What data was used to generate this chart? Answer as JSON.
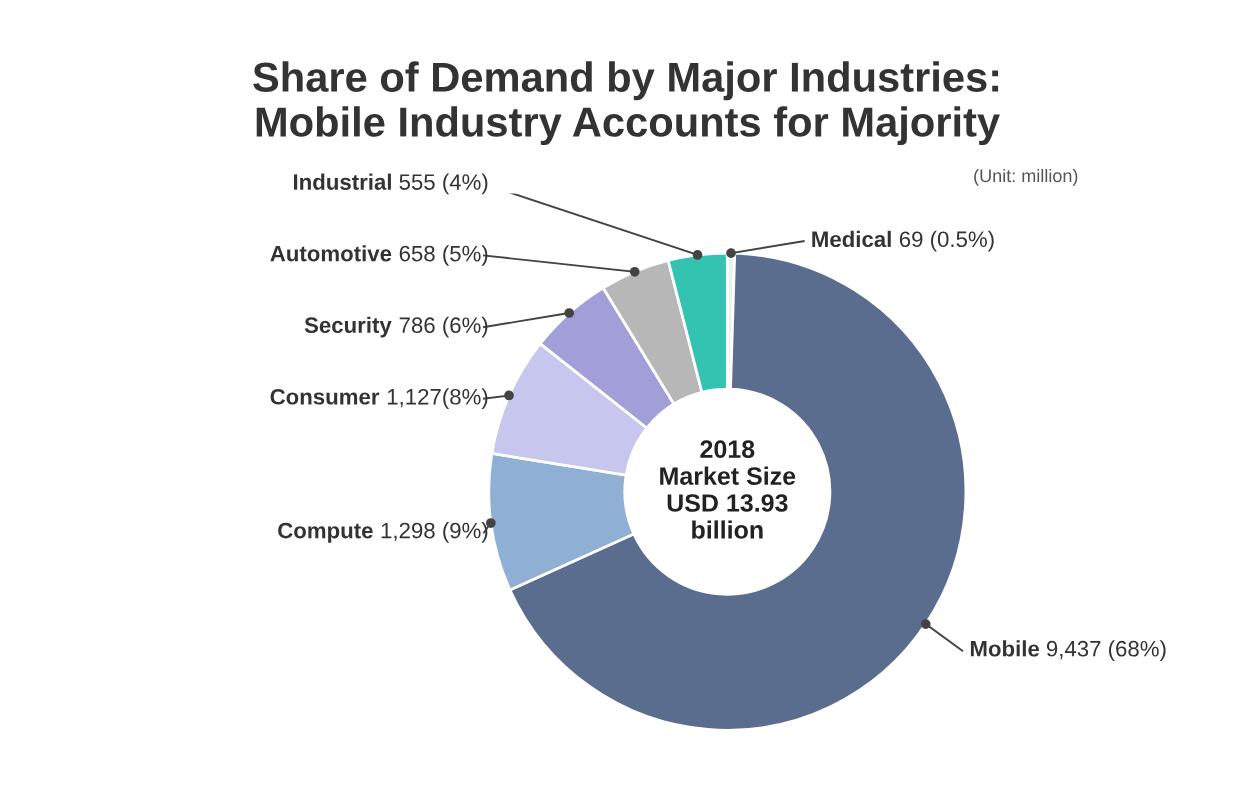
{
  "chart_data": {
    "type": "donut",
    "title": "Share of Demand by Major Industries:\nMobile Industry Accounts for Majority",
    "categories": [
      "Medical",
      "Mobile",
      "Compute",
      "Consumer",
      "Security",
      "Automotive",
      "Industrial"
    ],
    "values": [
      69,
      9437,
      1298,
      1127,
      786,
      658,
      555
    ],
    "value_labels": [
      "69 (0.5%)",
      "9,437 (68%)",
      "1,298 (9%)",
      "1,127(8%)",
      "786 (6%)",
      "658 (5%)",
      "555 (4%)"
    ],
    "colors": [
      "#e6f3f1",
      "#5a6d8e",
      "#8fb0d4",
      "#c6c6ee",
      "#a29fd8",
      "#b7b7b7",
      "#33c3b0"
    ],
    "annotations": [
      "(Unit: million)",
      "2018\nMarket Size\nUSD 13.93\nbillion"
    ]
  }
}
